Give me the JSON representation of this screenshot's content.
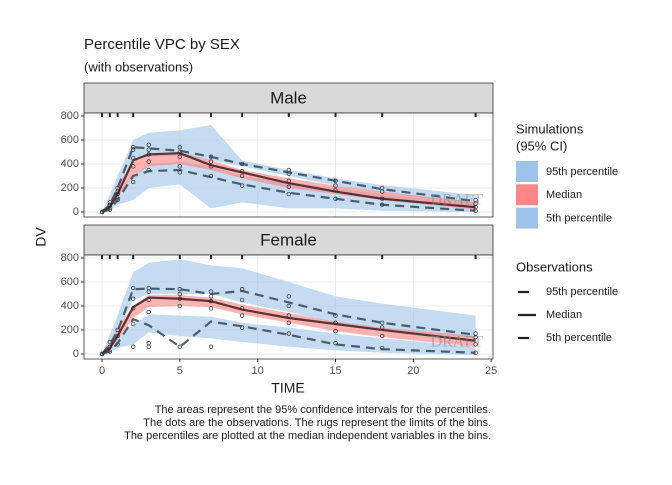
{
  "chart_data": {
    "type": "vpc",
    "title": "Percentile VPC by SEX",
    "subtitle": "(with observations)",
    "x_label": "TIME",
    "y_label": "DV",
    "caption": [
      "The areas represent the 95% confidence intervals for the percentiles.",
      "The dots are the observations. The rugs represent the limits of the bins.",
      "The percentiles are plotted at the median independent variables in the bins."
    ],
    "watermark": "DRAFT",
    "xlim": [
      -1.16,
      25.12
    ],
    "ylim": [
      -42,
      825
    ],
    "xticks": [
      0,
      5,
      10,
      15,
      20,
      25
    ],
    "yticks": [
      0,
      200,
      400,
      600,
      800
    ],
    "grid": true,
    "rug": [
      0,
      0.5,
      1,
      2,
      5,
      7,
      9,
      12,
      15,
      18,
      24
    ],
    "x": [
      0,
      0.5,
      1,
      2,
      3,
      5,
      7,
      9,
      12,
      15,
      18,
      24
    ],
    "sim_legend_title": [
      "Simulations",
      "(95% CI)"
    ],
    "sim_series": [
      {
        "name": "95th percentile",
        "color": "#9ec3e8"
      },
      {
        "name": "Median",
        "color": "#ff7f7f"
      },
      {
        "name": "5th percentile",
        "color": "#9ec3e8"
      }
    ],
    "obs_legend_title": "Observations",
    "obs_series": [
      {
        "name": "95th percentile",
        "color": "#2f4858",
        "dashed": true
      },
      {
        "name": "Median",
        "color": "#3a1f1f",
        "dashed": false
      },
      {
        "name": "5th percentile",
        "color": "#2f4858",
        "dashed": true
      }
    ],
    "point_color": "#222222",
    "facets": [
      {
        "name": "Male",
        "sim": [
          {
            "lower": [
              0,
              60,
              180,
              440,
              460,
              470,
              430,
              380,
              300,
              220,
              160,
              60
            ],
            "upper": [
              0,
              150,
              300,
              600,
              660,
              680,
              725,
              430,
              350,
              280,
              225,
              140
            ]
          },
          {
            "lower": [
              0,
              30,
              120,
              300,
              380,
              400,
              350,
              280,
              200,
              150,
              100,
              20
            ],
            "upper": [
              0,
              70,
              220,
              420,
              470,
              500,
              430,
              350,
              280,
              220,
              170,
              80
            ]
          },
          {
            "lower": [
              0,
              10,
              60,
              100,
              200,
              230,
              30,
              80,
              30,
              30,
              10,
              0
            ],
            "upper": [
              0,
              40,
              150,
              300,
              400,
              420,
              380,
              300,
              250,
              200,
              150,
              60
            ]
          }
        ],
        "obs": [
          {
            "values": [
              0,
              60,
              200,
              540,
              530,
              510,
              460,
              400,
              330,
              260,
              190,
              90
            ]
          },
          {
            "values": [
              0,
              40,
              150,
              430,
              480,
              490,
              390,
              330,
              240,
              170,
              110,
              40
            ]
          },
          {
            "values": [
              0,
              20,
              100,
              300,
              340,
              350,
              290,
              230,
              160,
              110,
              60,
              10
            ]
          }
        ],
        "points": {
          "x": [
            0,
            0,
            0,
            0.5,
            0.5,
            0.5,
            0.5,
            1,
            1,
            1,
            1,
            2,
            2,
            2,
            2,
            2,
            3,
            3,
            3,
            3,
            3,
            5,
            5,
            5,
            5,
            5,
            7,
            7,
            7,
            7,
            9,
            9,
            9,
            9,
            12,
            12,
            12,
            12,
            12,
            15,
            15,
            15,
            15,
            18,
            18,
            18,
            18,
            24,
            24,
            24,
            24
          ],
          "y": [
            0,
            0,
            0,
            20,
            50,
            60,
            80,
            100,
            150,
            170,
            200,
            250,
            380,
            450,
            520,
            540,
            350,
            420,
            480,
            520,
            560,
            330,
            380,
            460,
            500,
            540,
            300,
            380,
            420,
            460,
            220,
            300,
            340,
            400,
            150,
            210,
            260,
            320,
            350,
            110,
            180,
            220,
            260,
            60,
            110,
            170,
            200,
            10,
            40,
            70,
            100
          ]
        }
      },
      {
        "name": "Female",
        "sim": [
          {
            "lower": [
              0,
              60,
              180,
              450,
              500,
              500,
              500,
              430,
              350,
              260,
              200,
              130
            ],
            "upper": [
              0,
              160,
              320,
              680,
              760,
              790,
              740,
              715,
              600,
              480,
              420,
              320
            ]
          },
          {
            "lower": [
              0,
              30,
              120,
              300,
              390,
              400,
              390,
              330,
              260,
              190,
              140,
              60
            ],
            "upper": [
              0,
              80,
              220,
              400,
              490,
              490,
              470,
              410,
              340,
              270,
              220,
              150
            ]
          },
          {
            "lower": [
              0,
              10,
              50,
              80,
              180,
              150,
              130,
              100,
              60,
              30,
              10,
              -10
            ],
            "upper": [
              0,
              40,
              140,
              240,
              330,
              320,
              310,
              260,
              220,
              170,
              130,
              60
            ]
          }
        ],
        "obs": [
          {
            "values": [
              0,
              80,
              190,
              540,
              545,
              540,
              500,
              525,
              430,
              330,
              260,
              160
            ]
          },
          {
            "values": [
              0,
              50,
              150,
              390,
              470,
              460,
              440,
              370,
              300,
              250,
              200,
              110
            ]
          },
          {
            "values": [
              0,
              20,
              90,
              290,
              240,
              60,
              270,
              230,
              160,
              80,
              40,
              10
            ]
          }
        ],
        "points": {
          "x": [
            0,
            0,
            0,
            0.5,
            0.5,
            0.5,
            1,
            1,
            1,
            2,
            2,
            2,
            2,
            2,
            3,
            3,
            3,
            3,
            3,
            3,
            5,
            5,
            5,
            5,
            5,
            7,
            7,
            7,
            7,
            7,
            9,
            9,
            9,
            9,
            9,
            12,
            12,
            12,
            12,
            12,
            15,
            15,
            15,
            15,
            18,
            18,
            18,
            18,
            24,
            24,
            24,
            24
          ],
          "y": [
            0,
            0,
            0,
            20,
            60,
            100,
            80,
            150,
            200,
            60,
            250,
            380,
            460,
            550,
            60,
            90,
            350,
            450,
            520,
            550,
            60,
            400,
            460,
            500,
            540,
            60,
            380,
            440,
            480,
            520,
            220,
            320,
            380,
            450,
            540,
            170,
            260,
            320,
            400,
            480,
            90,
            190,
            260,
            320,
            50,
            150,
            220,
            260,
            10,
            80,
            140,
            170
          ]
        }
      }
    ]
  }
}
